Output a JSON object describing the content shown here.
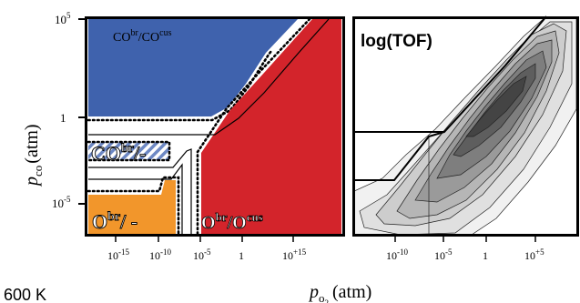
{
  "colors": {
    "blue": "#3f62ad",
    "red": "#d3242b",
    "orange": "#f2962b",
    "hatch": "#6d88c4",
    "frame": "#000000"
  },
  "left_panel": {
    "y_axis_label": "p",
    "y_axis_label_sub": "co",
    "y_axis_label_unit": "(atm)",
    "y_ticks": [
      {
        "base": "10",
        "exp": "5"
      },
      {
        "base": "1",
        "exp": ""
      },
      {
        "base": "10",
        "exp": "-5"
      }
    ],
    "x_ticks": [
      {
        "base": "10",
        "exp": "-15"
      },
      {
        "base": "10",
        "exp": "-10"
      },
      {
        "base": "10",
        "exp": "-5"
      },
      {
        "base": "1",
        "exp": ""
      },
      {
        "base": "10",
        "exp": "+15"
      }
    ],
    "regions": {
      "blue": {
        "base": "CO",
        "sup1": "br",
        "mid": "/CO",
        "sup2": "cus"
      },
      "hatched": {
        "base": "CO",
        "sup1": "br",
        "tail": "/-"
      },
      "orange": {
        "base": "O",
        "sup1": "br",
        "tail": "/ -"
      },
      "red": {
        "base": "O",
        "sup1": "br",
        "mid": "/O",
        "sup2": "cus"
      }
    },
    "temperature": "600 K"
  },
  "right_panel": {
    "title": "log(TOF)",
    "x_ticks": [
      {
        "base": "10",
        "exp": "-10"
      },
      {
        "base": "10",
        "exp": "-5"
      },
      {
        "base": "1",
        "exp": ""
      },
      {
        "base": "10",
        "exp": "+5"
      }
    ]
  },
  "x_axis_label": {
    "base": "p",
    "sub": "o",
    "sub2": "2",
    "unit": "(atm)"
  }
}
